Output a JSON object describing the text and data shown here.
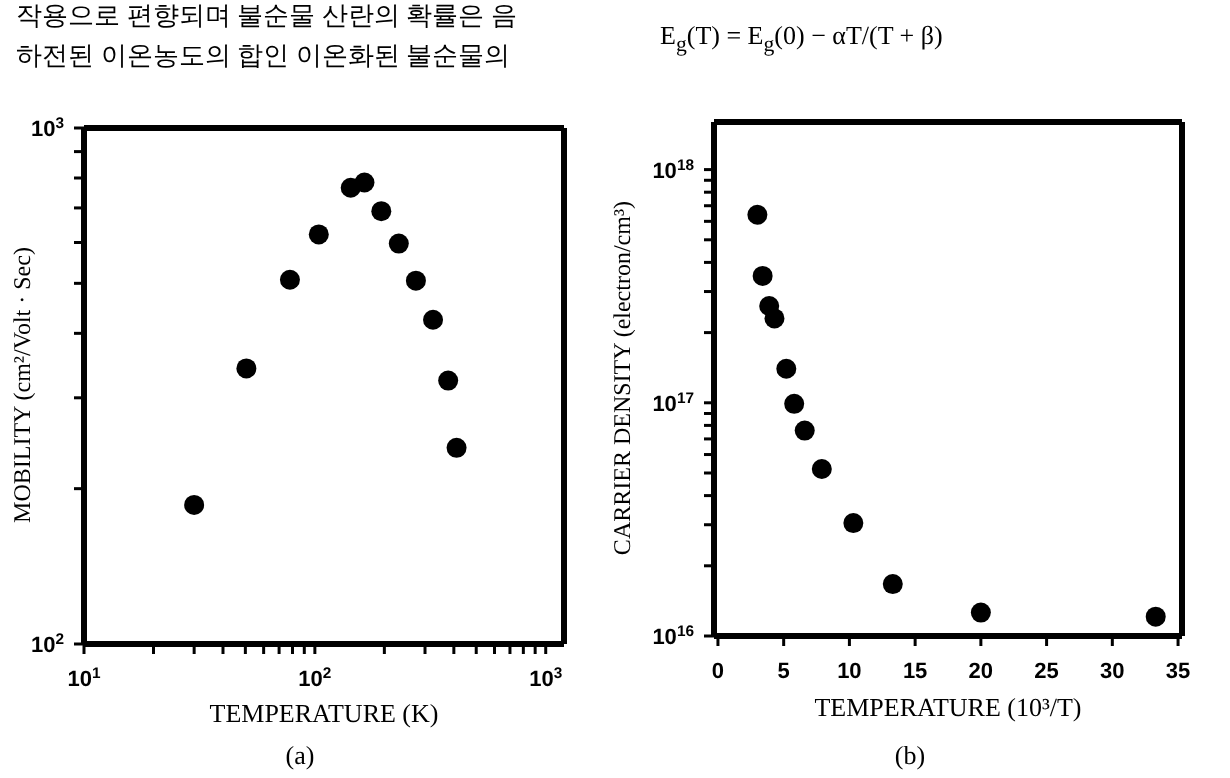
{
  "chart_data": [
    {
      "type": "scatter",
      "xlabel": "TEMPERATURE (K)",
      "ylabel": "MOBILITY (cm²/Volt · Sec)",
      "log": "xy",
      "marker": "circle",
      "annotations": [
        "작용으로 편향되며 불순물 산란의 확률은 음",
        "하전된 이온농도의 합인 이온화된 불순물의",
        "(a)"
      ],
      "x": [
        30,
        50.5,
        78,
        104,
        143,
        164,
        194,
        231,
        274,
        325,
        378,
        411
      ],
      "series": [
        {
          "color": "#000000",
          "values": [
            186,
            342,
            508,
            622,
            766,
            784,
            690,
            597,
            506,
            425,
            324,
            240
          ]
        }
      ],
      "xlim": [
        10,
        1200
      ],
      "ylim": [
        100,
        1000
      ],
      "xticks": [
        {
          "value": 10,
          "label": "10$^{1}$"
        },
        {
          "value": 20,
          "label": null
        },
        {
          "value": 30,
          "label": null
        },
        {
          "value": 40,
          "label": null
        },
        {
          "value": 50,
          "label": null
        },
        {
          "value": 60,
          "label": null
        },
        {
          "value": 70,
          "label": null
        },
        {
          "value": 80,
          "label": null
        },
        {
          "value": 90,
          "label": null
        },
        {
          "value": 100,
          "label": "10$^{2}$"
        },
        {
          "value": 200,
          "label": null
        },
        {
          "value": 300,
          "label": null
        },
        {
          "value": 400,
          "label": null
        },
        {
          "value": 500,
          "label": null
        },
        {
          "value": 600,
          "label": null
        },
        {
          "value": 700,
          "label": null
        },
        {
          "value": 800,
          "label": null
        },
        {
          "value": 900,
          "label": null
        },
        {
          "value": 1000,
          "label": "10$^{3}$"
        }
      ],
      "yticks": [
        {
          "value": 100,
          "label": "10$^{2}$"
        },
        {
          "value": 200,
          "label": null
        },
        {
          "value": 300,
          "label": null
        },
        {
          "value": 400,
          "label": null
        },
        {
          "value": 500,
          "label": null
        },
        {
          "value": 600,
          "label": null
        },
        {
          "value": 700,
          "label": null
        },
        {
          "value": 800,
          "label": null
        },
        {
          "value": 900,
          "label": null
        },
        {
          "value": 1000,
          "label": "10$^{3}$"
        }
      ]
    },
    {
      "type": "scatter",
      "xlabel": "TEMPERATURE (10³/T)",
      "ylabel": "CARRIER DENSITY (electron/cm³)",
      "log": "y",
      "marker": "circle",
      "annotations": [
        "E$_{g}$(T) = E$_{g}$(0) − αT/(T + β)",
        "(b)"
      ],
      "x": [
        3.0,
        3.4,
        3.9,
        4.3,
        5.2,
        5.8,
        6.6,
        7.9,
        10.3,
        13.3,
        20,
        33.3
      ],
      "series": [
        {
          "color": "#000000",
          "values": [
            6.4e+17,
            3.5e+17,
            2.6e+17,
            2.3e+17,
            1.4e+17,
            9.9e+16,
            7.6e+16,
            5.2e+16,
            3.05e+16,
            1.67e+16,
            1.26e+16,
            1.21e+16
          ]
        }
      ],
      "xlim": [
        -0.3,
        35.3
      ],
      "ylim": [
        1e+16,
        1.6e+18
      ],
      "xticks": [
        0,
        5,
        10,
        15,
        20,
        25,
        30,
        35
      ],
      "yticks": [
        {
          "value": 1e+16,
          "label": "10$^{16}$"
        },
        {
          "value": 2e+16,
          "label": null
        },
        {
          "value": 3e+16,
          "label": null
        },
        {
          "value": 4e+16,
          "label": null
        },
        {
          "value": 5e+16,
          "label": null
        },
        {
          "value": 6e+16,
          "label": null
        },
        {
          "value": 7e+16,
          "label": null
        },
        {
          "value": 8e+16,
          "label": null
        },
        {
          "value": 9e+16,
          "label": null
        },
        {
          "value": 1e+17,
          "label": "10$^{17}$"
        },
        {
          "value": 2e+17,
          "label": null
        },
        {
          "value": 3e+17,
          "label": null
        },
        {
          "value": 4e+17,
          "label": null
        },
        {
          "value": 5e+17,
          "label": null
        },
        {
          "value": 6e+17,
          "label": null
        },
        {
          "value": 7e+17,
          "label": null
        },
        {
          "value": 8e+17,
          "label": null
        },
        {
          "value": 9e+17,
          "label": null
        },
        {
          "value": 1e+18,
          "label": "10$^{18}$"
        }
      ]
    }
  ]
}
